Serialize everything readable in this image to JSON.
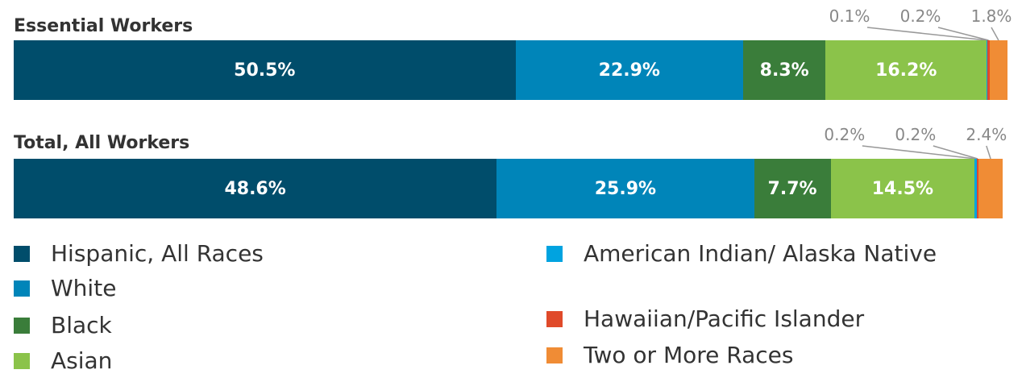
{
  "chart_data": {
    "type": "bar",
    "orientation": "horizontal",
    "stacked": true,
    "categories": [
      "Essential Workers",
      "Total, All Workers"
    ],
    "xlim": [
      0,
      100
    ],
    "series": [
      {
        "name": "Hispanic, All Races",
        "color": "#004d6b",
        "values": [
          50.5,
          48.6
        ],
        "value_labels": [
          "50.5%",
          "48.6%"
        ]
      },
      {
        "name": "White",
        "color": "#0085b9",
        "values": [
          22.9,
          25.9
        ],
        "value_labels": [
          "22.9%",
          "25.9%"
        ]
      },
      {
        "name": "Black",
        "color": "#3a7d3a",
        "values": [
          8.3,
          7.7
        ],
        "value_labels": [
          "8.3%",
          "7.7%"
        ]
      },
      {
        "name": "Asian",
        "color": "#8bc34a",
        "values": [
          16.2,
          14.5
        ],
        "value_labels": [
          "16.2%",
          "14.5%"
        ]
      },
      {
        "name": "American Indian/ Alaska Native",
        "color": "#00a3e0",
        "values": [
          0.1,
          0.2
        ],
        "value_labels": [
          "0.1%",
          "0.2%"
        ]
      },
      {
        "name": "Hawaiian/Pacific Islander",
        "color": "#e04a2a",
        "values": [
          0.2,
          0.2
        ],
        "value_labels": [
          "0.2%",
          "0.2%"
        ]
      },
      {
        "name": "Two or More Races",
        "color": "#f08c35",
        "values": [
          1.8,
          2.4
        ],
        "value_labels": [
          "1.8%",
          "2.4%"
        ]
      }
    ]
  }
}
